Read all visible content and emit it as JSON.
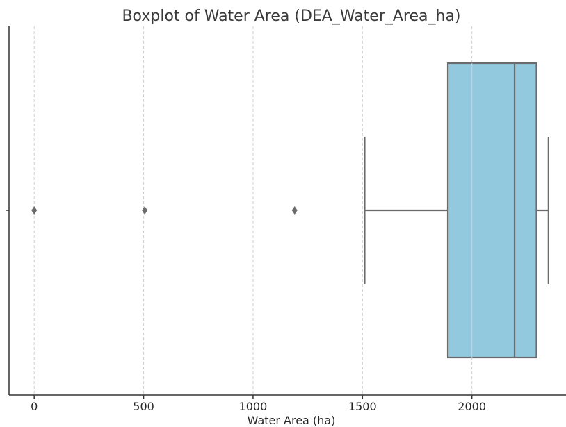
{
  "chart_data": {
    "type": "boxplot",
    "orientation": "horizontal",
    "title": "Boxplot of Water Area (DEA_Water_Area_ha)",
    "xlabel": "Water Area (ha)",
    "ylabel": "",
    "xlim": [
      -115,
      2430
    ],
    "xticks": [
      0,
      500,
      1000,
      1500,
      2000
    ],
    "xtick_labels": [
      "0",
      "500",
      "1000",
      "1500",
      "2000"
    ],
    "grid": "vertical dashed",
    "box": {
      "whisker_low": 1510,
      "q1": 1890,
      "median": 2195,
      "q3": 2295,
      "whisker_high": 2350
    },
    "outliers": [
      0,
      505,
      1190
    ],
    "colors": {
      "box_fill": "#92c9df",
      "box_edge": "#6b6b6b",
      "outlier": "#6b6b6b"
    }
  }
}
